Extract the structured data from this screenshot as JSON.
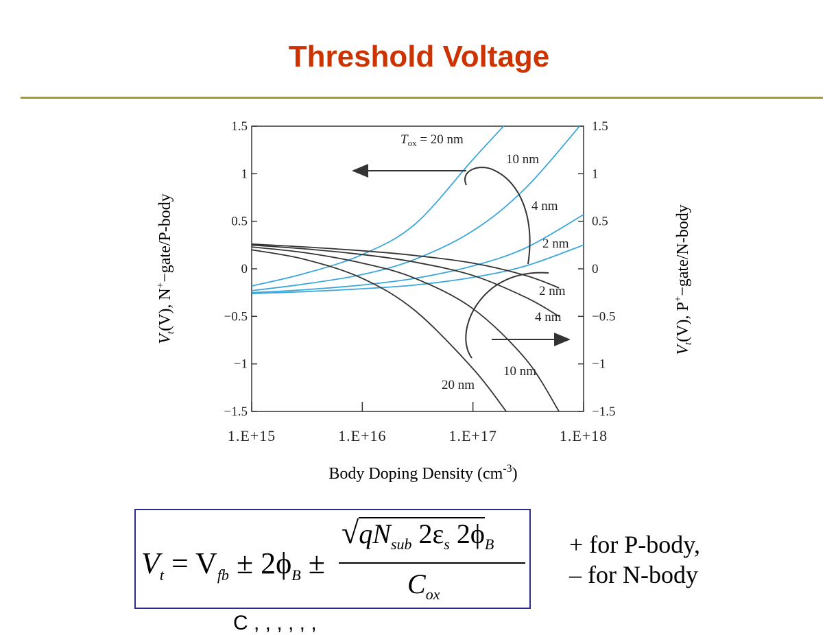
{
  "slide": {
    "title": "Threshold Voltage"
  },
  "chart_data": {
    "type": "line",
    "xlabel": "Body Doping Density (cm",
    "xlabel_sup": "-3",
    "xlabel_end": ")",
    "x_scale": "log",
    "x_ticks": [
      "1.E+15",
      "1.E+16",
      "1.E+17",
      "1.E+18"
    ],
    "xlim": [
      1000000000000000.0,
      1e+18
    ],
    "left_axis": {
      "label_parts": [
        "V",
        "t",
        "(V), N",
        "+",
        "−gate/P-body"
      ],
      "ylim": [
        -1.5,
        1.5
      ],
      "ticks": [
        "1.5",
        "1",
        "0.5",
        "0",
        "−0.5",
        "−1",
        "−1.5"
      ]
    },
    "right_axis": {
      "label_parts": [
        "V",
        "t",
        "(V), P",
        "+",
        "−gate/N-body"
      ],
      "ylim": [
        -1.5,
        1.5
      ],
      "ticks": [
        "1.5",
        "1",
        "0.5",
        "0",
        "−0.5",
        "−1",
        "−1.5"
      ]
    },
    "series": [
      {
        "name": "20 nm",
        "axis": "right",
        "color": "#3aa6dc",
        "x": [
          1000000000000000.0,
          3000000000000000.0,
          1e+16,
          3e+16,
          1e+17,
          2e+17
        ],
        "y": [
          -0.18,
          -0.05,
          0.15,
          0.47,
          1.15,
          1.53
        ]
      },
      {
        "name": "10 nm",
        "axis": "right",
        "color": "#3aa6dc",
        "x": [
          1000000000000000.0,
          3000000000000000.0,
          1e+16,
          3e+16,
          1e+17,
          3e+17,
          1e+18
        ],
        "y": [
          -0.23,
          -0.16,
          -0.06,
          0.1,
          0.4,
          0.85,
          1.55
        ]
      },
      {
        "name": "4 nm",
        "axis": "right",
        "color": "#3aa6dc",
        "x": [
          1000000000000000.0,
          3000000000000000.0,
          1e+16,
          3e+16,
          1e+17,
          3e+17,
          1e+18
        ],
        "y": [
          -0.25,
          -0.22,
          -0.17,
          -0.1,
          0.03,
          0.22,
          0.57
        ]
      },
      {
        "name": "2 nm",
        "axis": "right",
        "color": "#3aa6dc",
        "x": [
          1000000000000000.0,
          3000000000000000.0,
          1e+16,
          3e+16,
          1e+17,
          3e+17,
          1e+18
        ],
        "y": [
          -0.26,
          -0.24,
          -0.21,
          -0.17,
          -0.09,
          0.03,
          0.25
        ]
      },
      {
        "name": "2 nm",
        "axis": "left",
        "color": "#333333",
        "x": [
          1000000000000000.0,
          3000000000000000.0,
          1e+16,
          3e+16,
          1e+17,
          3e+17,
          6e+17
        ],
        "y": [
          0.26,
          0.23,
          0.19,
          0.14,
          0.06,
          -0.07,
          -0.2
        ]
      },
      {
        "name": "4 nm",
        "axis": "left",
        "color": "#333333",
        "x": [
          1000000000000000.0,
          3000000000000000.0,
          1e+16,
          3e+16,
          1e+17,
          3e+17,
          6e+17
        ],
        "y": [
          0.25,
          0.21,
          0.15,
          0.07,
          -0.07,
          -0.3,
          -0.5
        ]
      },
      {
        "name": "10 nm",
        "axis": "left",
        "color": "#333333",
        "x": [
          1000000000000000.0,
          3000000000000000.0,
          1e+16,
          3e+16,
          1e+17,
          3e+17,
          6e+17
        ],
        "y": [
          0.23,
          0.17,
          0.06,
          -0.1,
          -0.42,
          -0.95,
          -1.5
        ]
      },
      {
        "name": "20 nm",
        "axis": "left",
        "color": "#333333",
        "x": [
          1000000000000000.0,
          3000000000000000.0,
          1e+16,
          3e+16,
          1e+17,
          2e+17
        ],
        "y": [
          0.2,
          0.1,
          -0.1,
          -0.44,
          -1.05,
          -1.5
        ]
      }
    ],
    "annotations": {
      "tox_top_main": "T",
      "tox_top_sub": "ox",
      "tox_top_val": " = 20 nm",
      "top_10": "10 nm",
      "top_4": "4 nm",
      "top_2": "2 nm",
      "bot_2": "2 nm",
      "bot_4": "4 nm",
      "bot_10": "10 nm",
      "bot_20": "20 nm"
    },
    "grid": false
  },
  "formula": {
    "lhs": "V",
    "lhs_sub": "t",
    "eq": " = V",
    "fb_sub": "fb",
    "pm1": " ± 2ϕ",
    "b_sub": "B",
    "pm2": " ±",
    "num_q": "qN",
    "num_sub": "sub",
    "num_rest": " 2ε",
    "num_s": "s",
    "num_phi": " 2ϕ",
    "num_B": "B",
    "den": "C",
    "den_sub": "ox"
  },
  "notes": {
    "plus": "+ for P-body,",
    "minus": "– for N-body"
  },
  "cut_text": "C              ,         ,                              ,   , ,   ,"
}
